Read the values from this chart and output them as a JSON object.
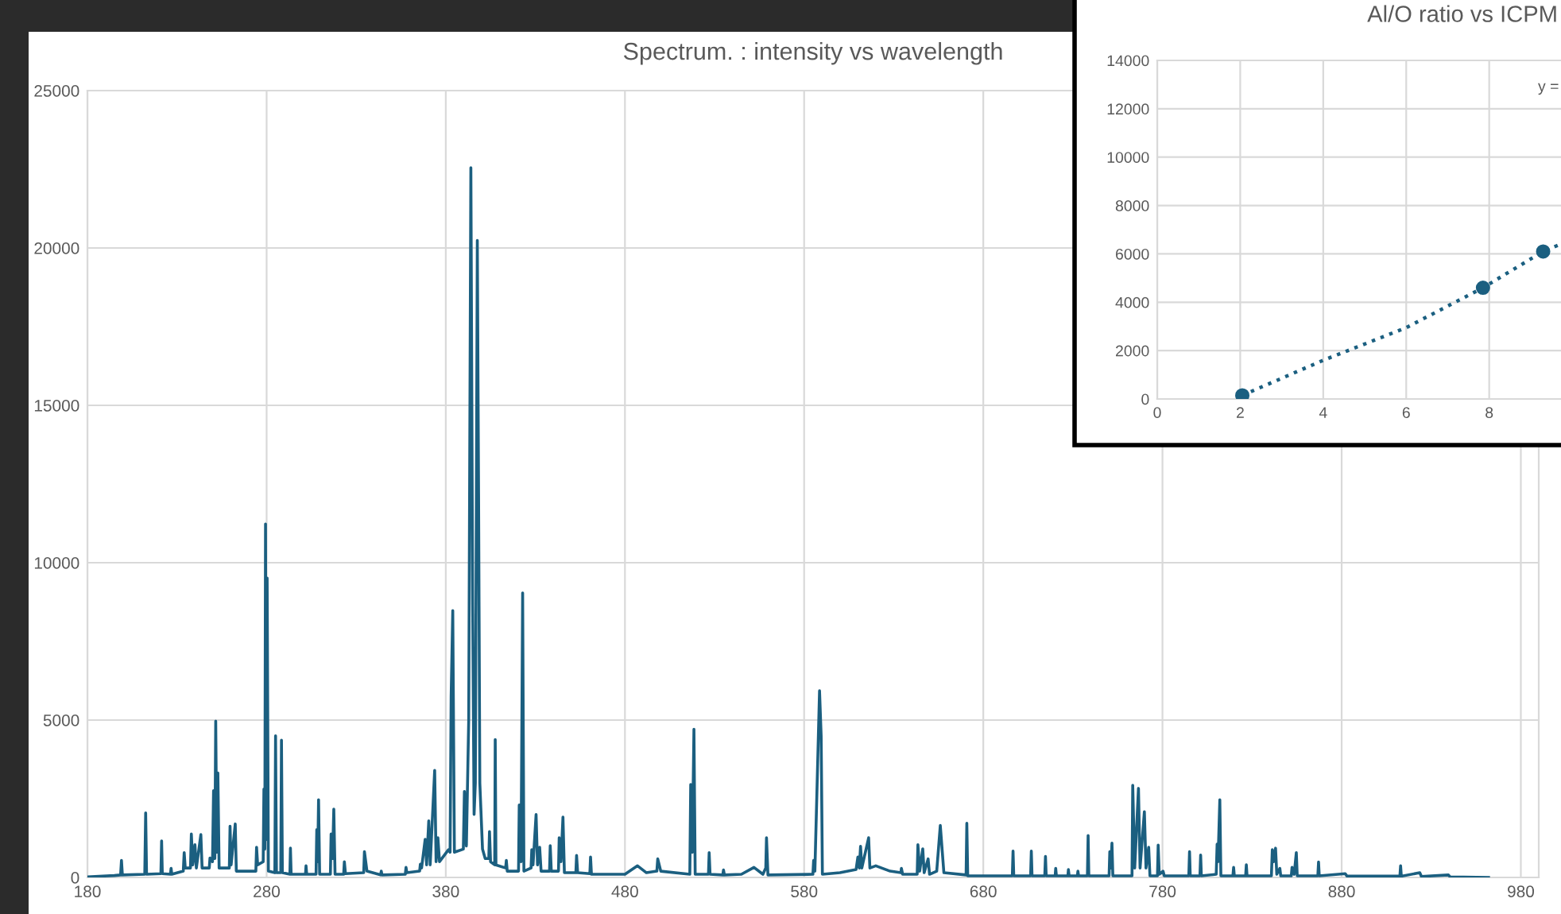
{
  "chart_data": [
    {
      "type": "line",
      "title": "Spectrum. : intensity vs wavelength",
      "color": "#1b5f80",
      "grid": true,
      "xlim": [
        180,
        990
      ],
      "ylim": [
        0,
        25000
      ],
      "xticks": [
        180,
        280,
        380,
        480,
        580,
        680,
        780,
        880,
        980
      ],
      "yticks": [
        0,
        5000,
        10000,
        15000,
        20000,
        25000
      ],
      "x": [
        180,
        195,
        198.5,
        199,
        199.5,
        212,
        212.5,
        213,
        221,
        221.4,
        221.8,
        226.3,
        226.7,
        227.1,
        233.5,
        234,
        234.6,
        237.5,
        238,
        238.8,
        240,
        240.8,
        243.3,
        244,
        248,
        248.4,
        249.8,
        250.4,
        251.1,
        251.6,
        252.2,
        252.8,
        253.5,
        259.2,
        259.6,
        260.2,
        262.5,
        263.1,
        274,
        274.4,
        275,
        278.1,
        278.5,
        279,
        279.4,
        279.8,
        280.3,
        281,
        284.6,
        285,
        285.5,
        287.9,
        288.3,
        288.8,
        293,
        293.3,
        293.7,
        301.7,
        302,
        302.4,
        307.6,
        308,
        308.5,
        309,
        309.6,
        315.6,
        316,
        316.8,
        317.5,
        318.2,
        323,
        323.4,
        324,
        334.2,
        334.6,
        336,
        343.6,
        344,
        344.4,
        357.4,
        357.8,
        358.3,
        365.4,
        365.8,
        366.5,
        368.5,
        369.3,
        370.5,
        371.3,
        373.8,
        374.6,
        375.6,
        376.5,
        381.5,
        382.4,
        383,
        383.9,
        384.8,
        389.8,
        390.4,
        391.5,
        392.8,
        394,
        395,
        395.8,
        396.5,
        397.6,
        398.3,
        399,
        400.5,
        402,
        404,
        404.4,
        405,
        407.3,
        407.6,
        408,
        413.4,
        413.8,
        414.3,
        420.6,
        421,
        422,
        422.9,
        423.6,
        427.6,
        428,
        428.7,
        430.4,
        431.2,
        432.4,
        433.2,
        437.9,
        438.3,
        438.9,
        442.9,
        443.3,
        444.3,
        445.4,
        446.2,
        452.6,
        453,
        453.6,
        460.4,
        460.8,
        461.3,
        480,
        487,
        492,
        497.8,
        498.3,
        500,
        516.2,
        516.7,
        517.6,
        518.5,
        519.2,
        526.6,
        527,
        527.5,
        534.6,
        535,
        535.5,
        545,
        552,
        557,
        558.6,
        559,
        559.8,
        584.9,
        585.3,
        586,
        588.6,
        589.5,
        590.2,
        600,
        609,
        610,
        610.8,
        611.5,
        612.2,
        616,
        616.7,
        620,
        628,
        634,
        634.3,
        635,
        643.1,
        643.5,
        644.5,
        646.2,
        647,
        649.2,
        650,
        654,
        656,
        658,
        670.4,
        670.8,
        671.3,
        696.2,
        696.6,
        697,
        706.4,
        706.8,
        707.2,
        714.3,
        714.7,
        715.1,
        720.1,
        720.4,
        720.8,
        727.2,
        727.5,
        727.9,
        732.5,
        732.8,
        733.2,
        738.1,
        738.5,
        738.9,
        750.2,
        750.6,
        751.2,
        751.8,
        752.3,
        763,
        763.4,
        764.5,
        766.6,
        767.5,
        769.9,
        770.8,
        772.3,
        773,
        777.2,
        777.6,
        778.2,
        780.3,
        781,
        794.7,
        795.1,
        795.5,
        800.9,
        801.3,
        801.7,
        810,
        810.5,
        811,
        812,
        812.6,
        819.3,
        819.7,
        820.1,
        826.4,
        826.8,
        827.2,
        840.8,
        841.3,
        842,
        843.1,
        843.8,
        845.5,
        846,
        851.9,
        852.3,
        853.5,
        854.7,
        855.2,
        866.7,
        867.1,
        867.5,
        882,
        883,
        912.5,
        912.9,
        913.3,
        923.6,
        924.5,
        939.6,
        940.5,
        962
      ],
      "values": [
        20,
        60,
        80,
        540,
        80,
        100,
        2050,
        100,
        120,
        1160,
        120,
        100,
        290,
        100,
        200,
        790,
        300,
        300,
        1380,
        400,
        1040,
        300,
        1360,
        300,
        300,
        620,
        500,
        2760,
        600,
        4970,
        800,
        3320,
        300,
        300,
        1630,
        400,
        1700,
        200,
        200,
        960,
        400,
        500,
        2810,
        900,
        11230,
        1200,
        9510,
        200,
        150,
        4500,
        150,
        150,
        4360,
        150,
        100,
        930,
        100,
        100,
        370,
        100,
        100,
        1520,
        500,
        2470,
        100,
        100,
        1380,
        600,
        2170,
        100,
        100,
        500,
        120,
        150,
        820,
        200,
        80,
        200,
        80,
        100,
        320,
        150,
        200,
        420,
        300,
        1210,
        400,
        1800,
        400,
        3400,
        500,
        1260,
        500,
        880,
        800,
        5760,
        8480,
        800,
        900,
        2730,
        1000,
        5000,
        22550,
        8700,
        2000,
        3000,
        20240,
        12200,
        3000,
        900,
        600,
        600,
        1460,
        500,
        400,
        4380,
        400,
        300,
        540,
        200,
        200,
        2300,
        500,
        9040,
        200,
        300,
        880,
        400,
        2000,
        400,
        960,
        200,
        200,
        1010,
        200,
        200,
        1260,
        500,
        1920,
        150,
        150,
        700,
        150,
        120,
        650,
        100,
        100,
        370,
        150,
        200,
        590,
        200,
        100,
        2950,
        800,
        4710,
        100,
        100,
        790,
        100,
        80,
        240,
        80,
        100,
        320,
        100,
        300,
        1260,
        80,
        100,
        540,
        200,
        5930,
        4500,
        100,
        150,
        250,
        650,
        300,
        990,
        300,
        1260,
        300,
        370,
        200,
        150,
        290,
        100,
        100,
        1040,
        200,
        910,
        150,
        590,
        100,
        200,
        1650,
        150,
        80,
        1720,
        50,
        50,
        840,
        50,
        50,
        840,
        50,
        50,
        670,
        50,
        50,
        290,
        50,
        50,
        250,
        50,
        50,
        200,
        50,
        50,
        1330,
        50,
        50,
        820,
        300,
        1090,
        50,
        50,
        2930,
        300,
        2830,
        300,
        2090,
        300,
        960,
        50,
        50,
        1030,
        100,
        200,
        50,
        50,
        820,
        50,
        50,
        710,
        50,
        100,
        1060,
        500,
        2470,
        50,
        50,
        320,
        50,
        50,
        400,
        50,
        50,
        880,
        500,
        930,
        100,
        290,
        50,
        50,
        320,
        100,
        790,
        50,
        50,
        490,
        50,
        120,
        40,
        40,
        370,
        40,
        150,
        30,
        80,
        20,
        0
      ]
    },
    {
      "type": "scatter",
      "title": "Al/O ratio vs ICPM",
      "grid": true,
      "annotations": [
        "y ="
      ],
      "xlim": [
        0,
        9.73
      ],
      "ylim": [
        0,
        14000
      ],
      "xticks": [
        0,
        2,
        4,
        6,
        8
      ],
      "yticks": [
        0,
        2000,
        4000,
        6000,
        8000,
        10000,
        12000,
        14000
      ],
      "series": [
        {
          "type": "scatter",
          "color": "#1b5f80",
          "marker": "circle",
          "x": [
            2.05,
            7.85,
            9.3
          ],
          "values": [
            150,
            4600,
            6100
          ]
        },
        {
          "type": "line",
          "color": "#1b5f80",
          "line_style": "dotted",
          "x": [
            2.05,
            4,
            6,
            7.85,
            9.3,
            9.73
          ],
          "values": [
            150,
            1600,
            2950,
            4600,
            6100,
            6410
          ]
        }
      ]
    }
  ]
}
